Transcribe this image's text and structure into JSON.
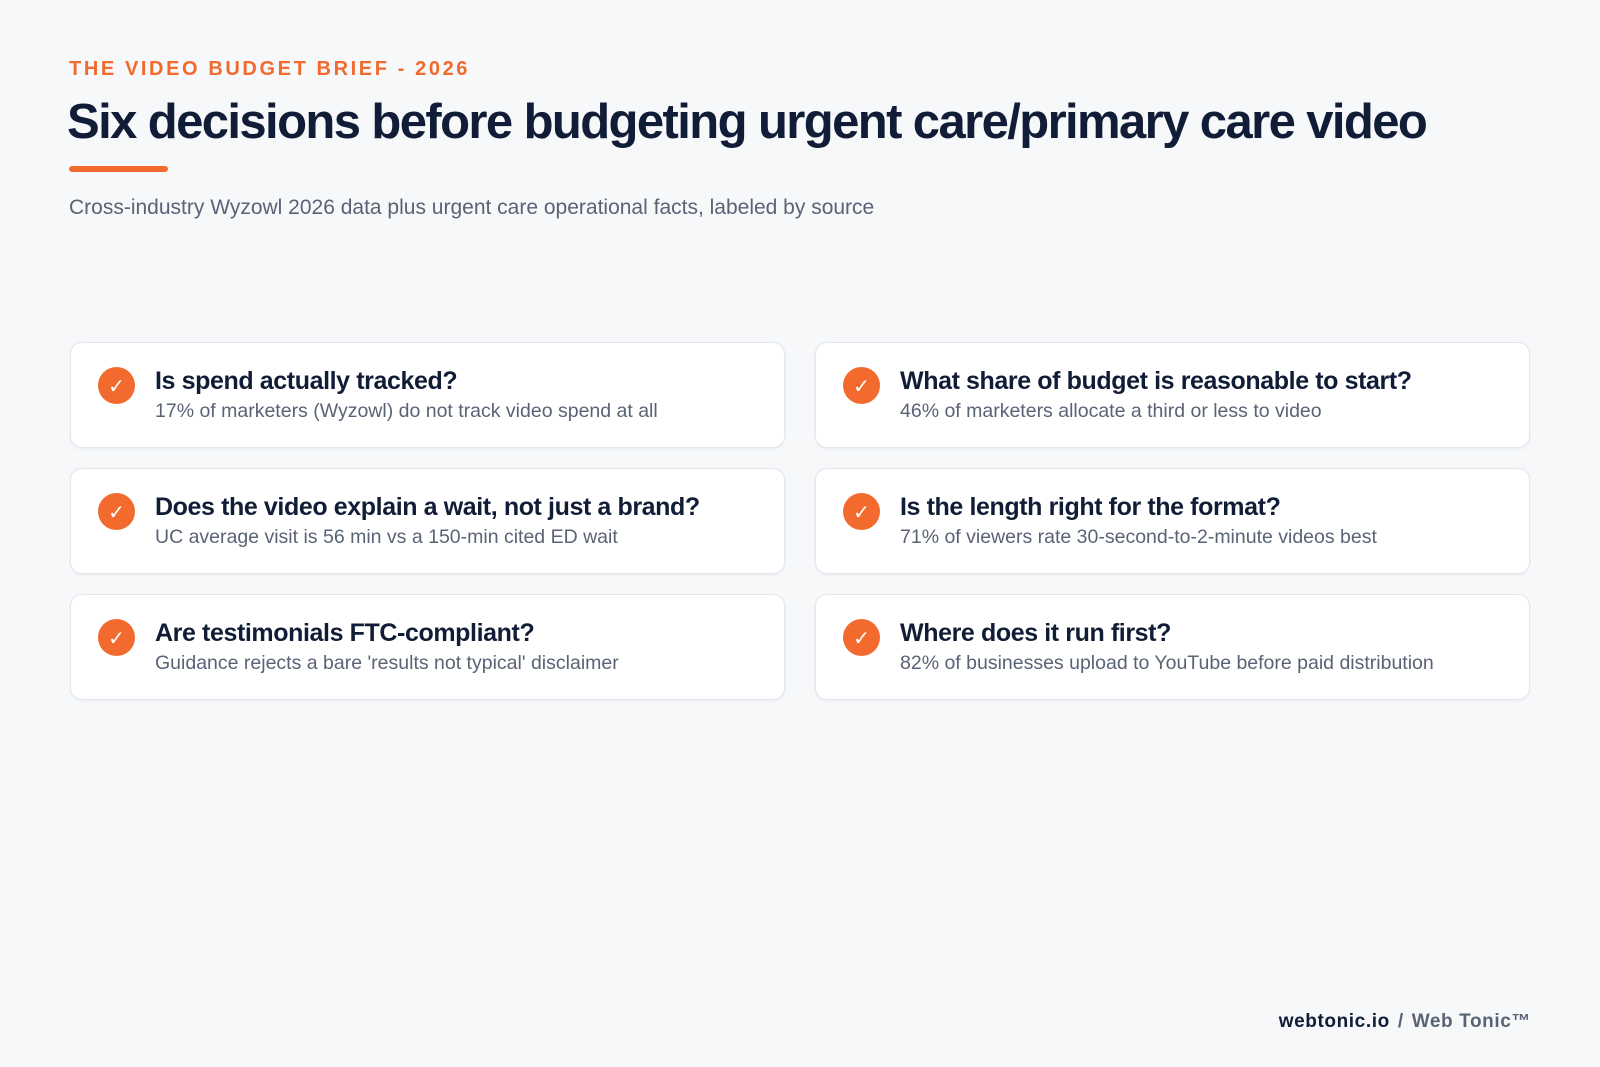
{
  "header": {
    "eyebrow": "THE VIDEO BUDGET BRIEF - 2026",
    "title": "Six decisions before budgeting urgent care/primary care video",
    "subtitle": "Cross-industry Wyzowl 2026 data plus urgent care operational facts, labeled by source"
  },
  "cards": [
    {
      "title": "Is spend actually tracked?",
      "detail": "17% of marketers (Wyzowl) do not track video spend at all",
      "icon": "check-icon"
    },
    {
      "title": "What share of budget is reasonable to start?",
      "detail": "46% of marketers allocate a third or less to video",
      "icon": "check-icon"
    },
    {
      "title": "Does the video explain a wait, not just a brand?",
      "detail": "UC average visit is 56 min vs a 150-min cited ED wait",
      "icon": "check-icon"
    },
    {
      "title": "Is the length right for the format?",
      "detail": "71% of viewers rate 30-second-to-2-minute videos best",
      "icon": "check-icon"
    },
    {
      "title": "Are testimonials FTC-compliant?",
      "detail": "Guidance rejects a bare 'results not typical' disclaimer",
      "icon": "check-icon"
    },
    {
      "title": "Where does it run first?",
      "detail": "82% of businesses upload to YouTube before paid distribution",
      "icon": "check-icon"
    }
  ],
  "footer": {
    "site": "webtonic.io",
    "separator": "/",
    "brand": "Web Tonic™"
  },
  "colors": {
    "accent": "#f26a2e",
    "heading": "#111c36",
    "muted": "#5a6376",
    "background": "#f6f8fa"
  }
}
